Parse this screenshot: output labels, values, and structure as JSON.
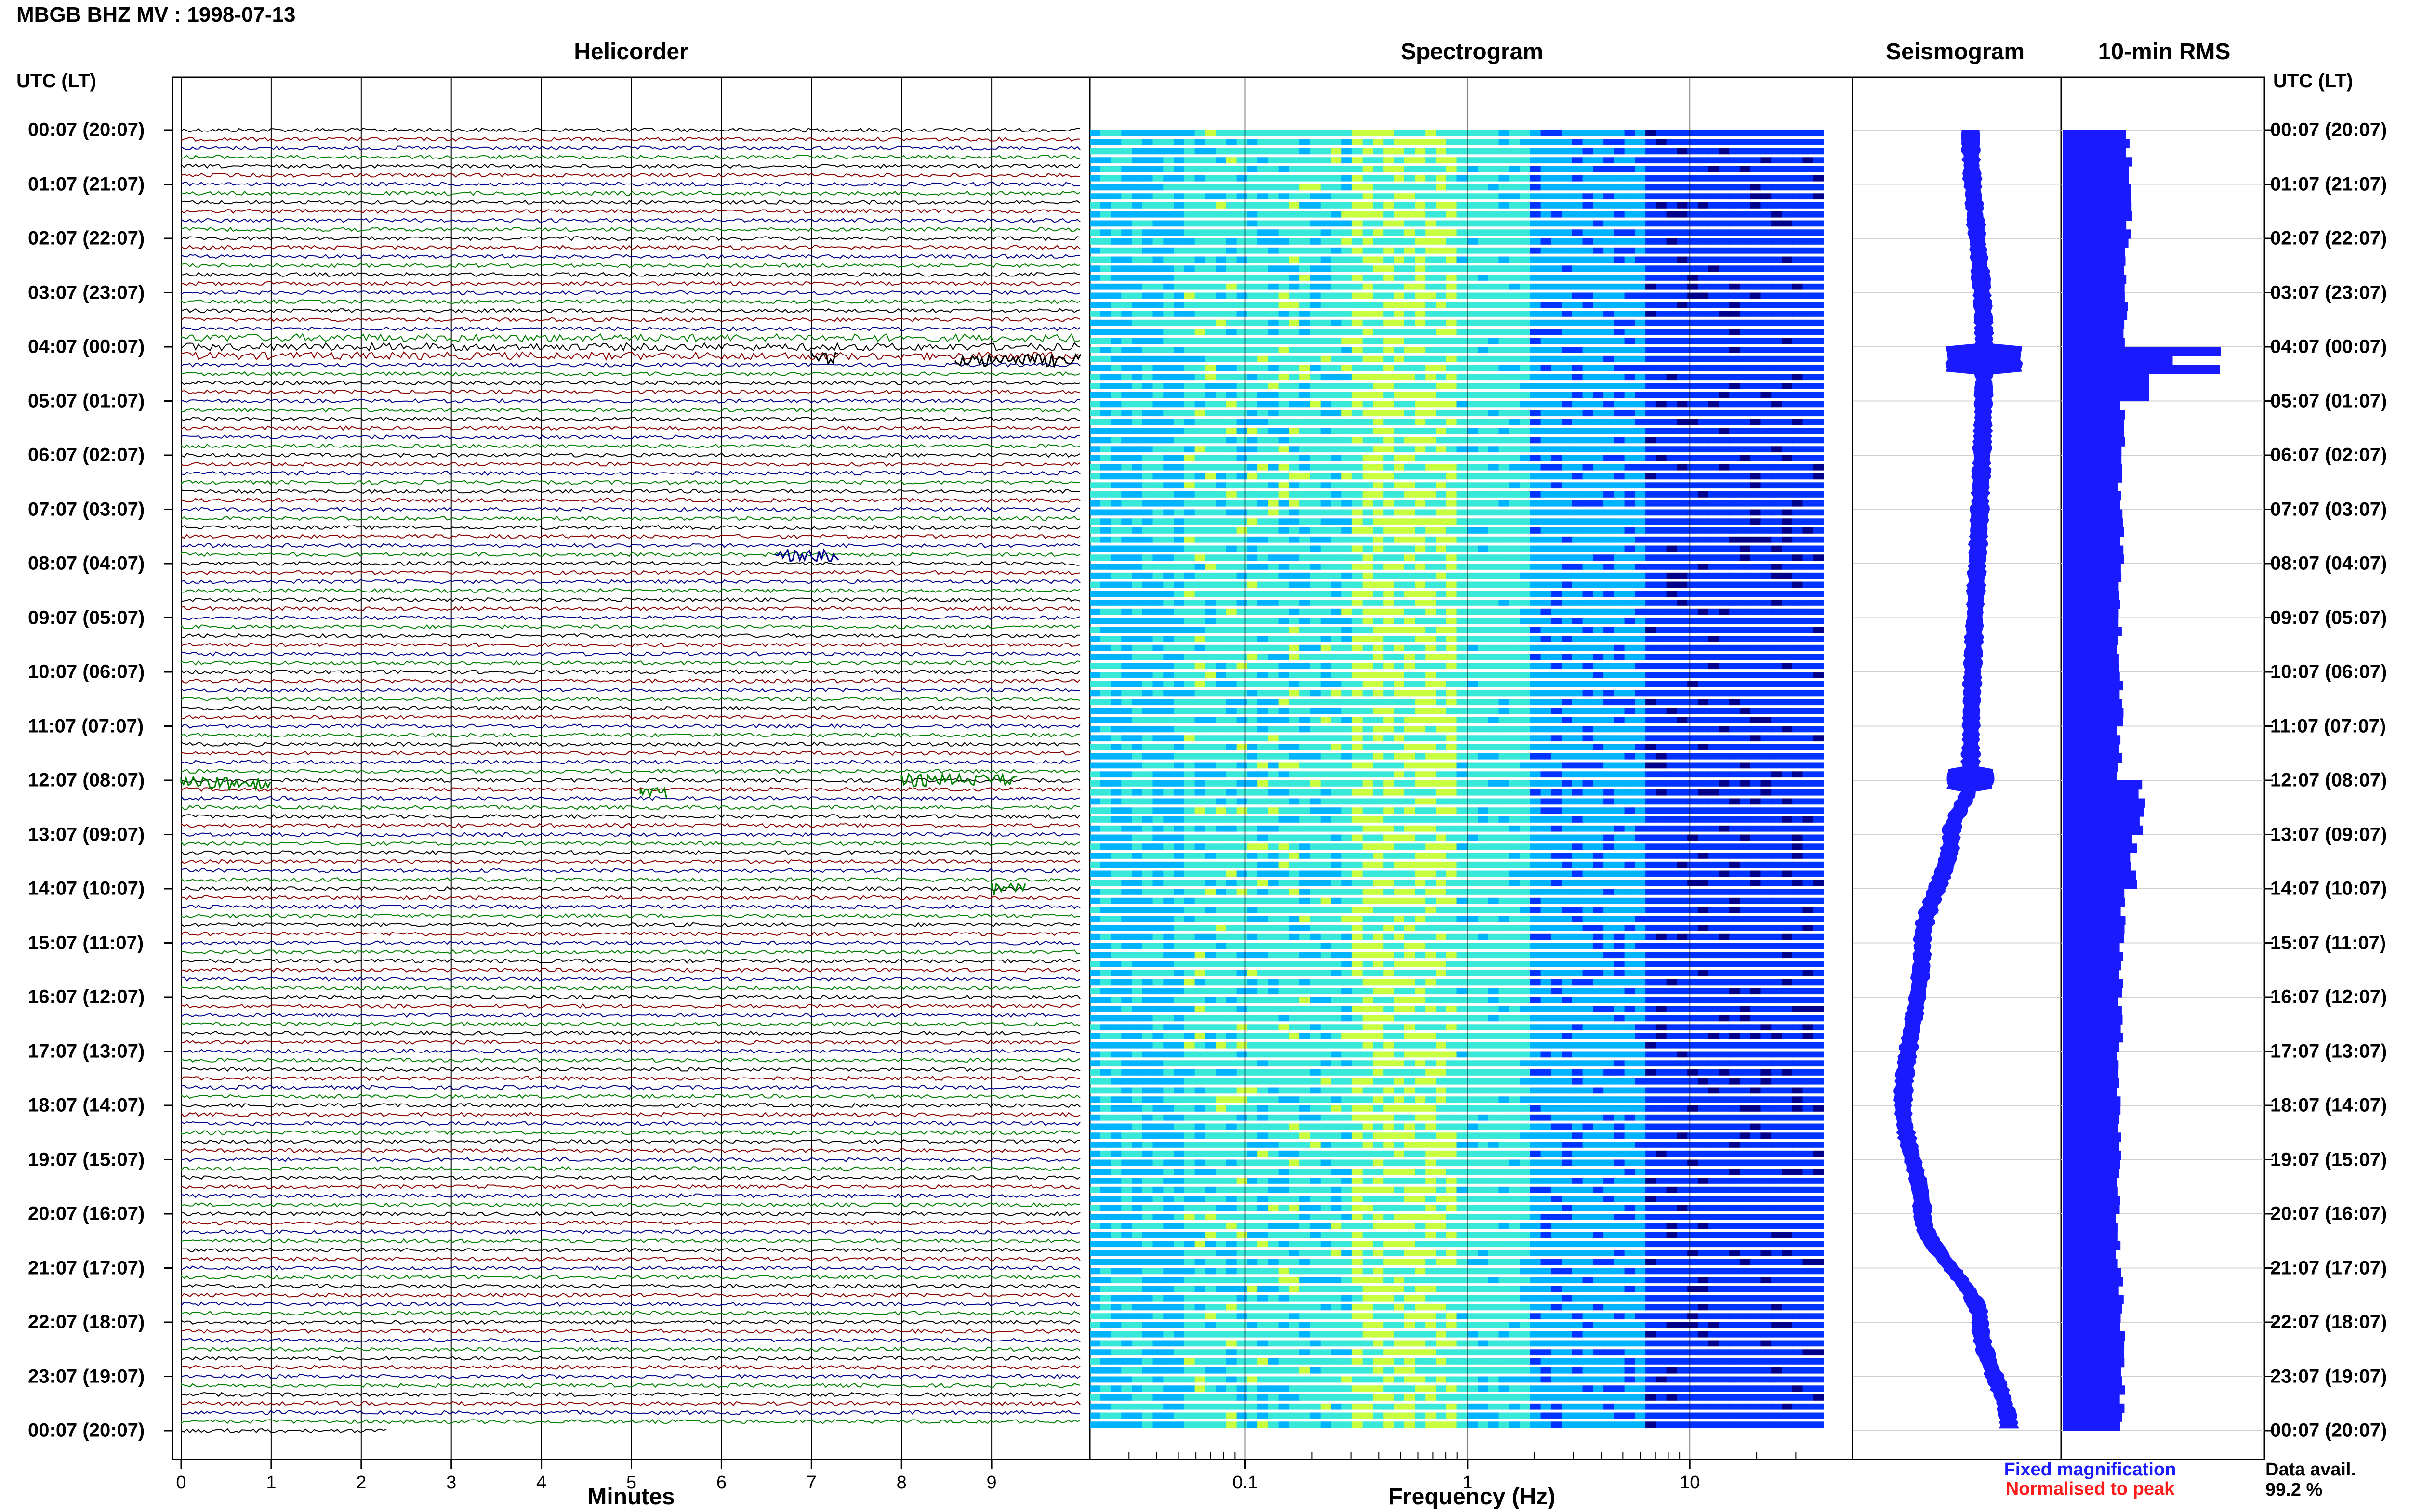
{
  "header": {
    "station_title": "MBGB BHZ MV : 1998-07-13"
  },
  "panels": {
    "helicorder_title": "Helicorder",
    "spectrogram_title": "Spectrogram",
    "seismogram_title": "Seismogram",
    "rms_title": "10-min RMS"
  },
  "axes": {
    "utc_header_left": "UTC (LT)",
    "utc_header_right": "UTC (LT)",
    "helicorder_xlabel": "Minutes",
    "spectrogram_xlabel": "Frequency (Hz)"
  },
  "legend": {
    "fixed": "Fixed magnification",
    "normalised": "Normalised to peak",
    "fixed_color": "#1a1aff",
    "normalised_color": "#ff1a1a"
  },
  "availability": {
    "label": "Data avail.",
    "value": "99.2 %"
  },
  "chart_data": [
    {
      "type": "line",
      "title": "Helicorder",
      "xlabel": "Minutes",
      "x_ticks": [
        "0",
        "1",
        "2",
        "3",
        "4",
        "5",
        "6",
        "7",
        "8",
        "9"
      ],
      "xlim": [
        0,
        10
      ],
      "trace_colors": [
        "#000000",
        "#8b0000",
        "#00008b",
        "#008000"
      ],
      "rows_per_hour": 6,
      "time_labels": [
        "00:07 (20:07)",
        "01:07 (21:07)",
        "02:07 (22:07)",
        "03:07 (23:07)",
        "04:07 (00:07)",
        "05:07 (01:07)",
        "06:07 (02:07)",
        "07:07 (03:07)",
        "08:07 (04:07)",
        "09:07 (05:07)",
        "10:07 (06:07)",
        "11:07 (07:07)",
        "12:07 (08:07)",
        "13:07 (09:07)",
        "14:07 (10:07)",
        "15:07 (11:07)",
        "16:07 (12:07)",
        "17:07 (13:07)",
        "18:07 (14:07)",
        "19:07 (15:07)",
        "20:07 (16:07)",
        "21:07 (17:07)",
        "22:07 (18:07)",
        "23:07 (19:07)",
        "00:07 (20:07)"
      ]
    },
    {
      "type": "heatmap",
      "title": "Spectrogram",
      "xlabel": "Frequency (Hz)",
      "x_scale": "log",
      "x_ticks": [
        "0.1",
        "1",
        "10"
      ],
      "xlim": [
        0.02,
        40
      ],
      "colormap": [
        "#00008b",
        "#0033ff",
        "#00b4ff",
        "#38e8d8",
        "#c8ff40"
      ]
    },
    {
      "type": "line",
      "title": "Seismogram",
      "note_points_hours": [
        0,
        4,
        12,
        13,
        15,
        18,
        20,
        22,
        24
      ],
      "relative_offset": [
        0.05,
        0.12,
        0.05,
        -0.05,
        -0.2,
        -0.3,
        -0.2,
        0.1,
        0.25
      ]
    },
    {
      "type": "bar",
      "title": "10-min RMS",
      "orientation": "horizontal",
      "peak_hour": 4.2,
      "relative_values_hourly": [
        0.42,
        0.42,
        0.41,
        0.4,
        1.0,
        0.38,
        0.36,
        0.37,
        0.36,
        0.36,
        0.37,
        0.36,
        0.5,
        0.45,
        0.38,
        0.37,
        0.37,
        0.36,
        0.36,
        0.35,
        0.35,
        0.37,
        0.38,
        0.38
      ]
    }
  ]
}
